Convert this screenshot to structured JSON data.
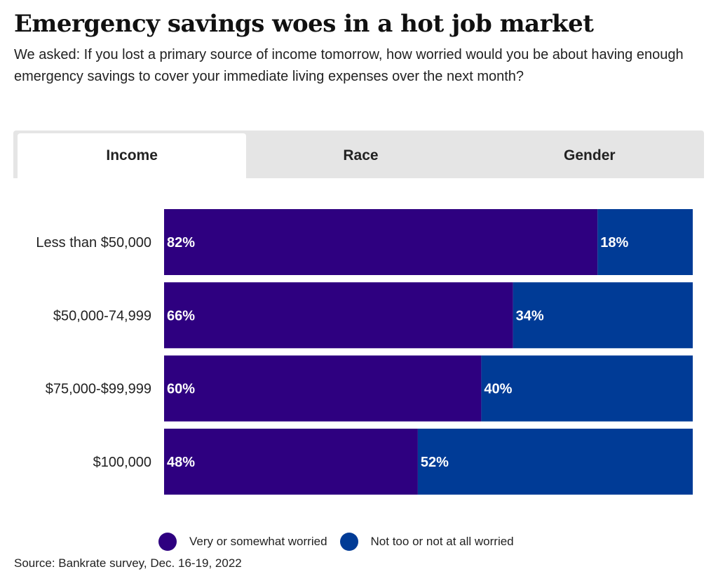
{
  "header": {
    "title": "Emergency savings woes in a hot job market",
    "subtitle": "We asked: If you lost a primary source of income tomorrow, how worried would you be about having enough emergency savings to cover your immediate living expenses over the next month?"
  },
  "tabs": [
    {
      "label": "Income",
      "active": true
    },
    {
      "label": "Race",
      "active": false
    },
    {
      "label": "Gender",
      "active": false
    }
  ],
  "chart_data": {
    "type": "bar",
    "orientation": "horizontal",
    "stacked": true,
    "categories": [
      "Less than $50,000",
      "$50,000-74,999",
      "$75,000-$99,999",
      "$100,000"
    ],
    "series": [
      {
        "name": "Very or somewhat worried",
        "values": [
          82,
          66,
          60,
          48
        ],
        "color": "#2e0080"
      },
      {
        "name": "Not too or not at all worried",
        "values": [
          18,
          34,
          40,
          52
        ],
        "color": "#003b96"
      }
    ],
    "value_suffix": "%",
    "xlim": [
      0,
      100
    ],
    "grid": false,
    "legend_position": "bottom"
  },
  "source": "Source: Bankrate survey, Dec. 16-19, 2022"
}
